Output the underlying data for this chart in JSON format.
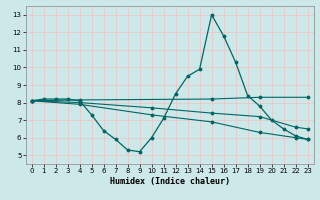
{
  "xlabel": "Humidex (Indice chaleur)",
  "xlim": [
    -0.5,
    23.5
  ],
  "ylim": [
    4.5,
    13.5
  ],
  "yticks": [
    5,
    6,
    7,
    8,
    9,
    10,
    11,
    12,
    13
  ],
  "xticks": [
    0,
    1,
    2,
    3,
    4,
    5,
    6,
    7,
    8,
    9,
    10,
    11,
    12,
    13,
    14,
    15,
    16,
    17,
    18,
    19,
    20,
    21,
    22,
    23
  ],
  "bg_color": "#cce8e8",
  "grid_color": "#e8c8c8",
  "line_color": "#006666",
  "series": [
    {
      "x": [
        0,
        1,
        2,
        3,
        4,
        5,
        6,
        7,
        8,
        9,
        10,
        11,
        12,
        13,
        14,
        15,
        16,
        17,
        18,
        19,
        20,
        21,
        22,
        23
      ],
      "y": [
        8.1,
        8.2,
        8.2,
        8.2,
        8.1,
        7.3,
        6.4,
        5.9,
        5.3,
        5.2,
        6.0,
        7.1,
        8.5,
        9.5,
        9.9,
        13.0,
        11.8,
        10.3,
        8.4,
        7.8,
        7.0,
        6.5,
        6.1,
        5.9
      ]
    },
    {
      "x": [
        0,
        4,
        15,
        19,
        23
      ],
      "y": [
        8.1,
        8.15,
        8.2,
        8.3,
        8.3
      ]
    },
    {
      "x": [
        0,
        4,
        10,
        15,
        19,
        22,
        23
      ],
      "y": [
        8.1,
        8.0,
        7.7,
        7.4,
        7.2,
        6.6,
        6.5
      ]
    },
    {
      "x": [
        0,
        4,
        10,
        15,
        19,
        22,
        23
      ],
      "y": [
        8.1,
        7.9,
        7.3,
        6.9,
        6.3,
        6.0,
        5.9
      ]
    }
  ]
}
